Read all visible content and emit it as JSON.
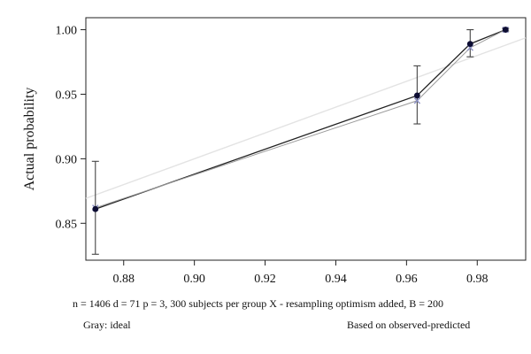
{
  "chart_data": {
    "type": "line",
    "title": "",
    "xlabel": "",
    "ylabel": "Actual probability",
    "xlim": [
      0.8693,
      0.9937
    ],
    "ylim": [
      0.8214,
      1.0093
    ],
    "x_ticks": [
      0.88,
      0.9,
      0.92,
      0.94,
      0.96,
      0.98
    ],
    "x_tick_labels": [
      "0.88",
      "0.90",
      "0.92",
      "0.94",
      "0.96",
      "0.98"
    ],
    "y_ticks": [
      0.85,
      0.9,
      0.95,
      1.0
    ],
    "y_tick_labels": [
      "0.85",
      "0.90",
      "0.95",
      "1.00"
    ],
    "grid": false,
    "series": [
      {
        "kind": "ideal",
        "color": "#e3e3e3",
        "x": [
          0.8693,
          0.9937
        ],
        "y": [
          0.8693,
          0.9937
        ]
      },
      {
        "kind": "observed",
        "color": "#222222",
        "marker": "dot",
        "x": [
          0.872,
          0.963,
          0.978,
          0.988
        ],
        "y": [
          0.861,
          0.949,
          0.989,
          1.0
        ],
        "ci_low": [
          0.826,
          0.927,
          0.979,
          0.999
        ],
        "ci_high": [
          0.898,
          0.972,
          1.0,
          1.001
        ]
      },
      {
        "kind": "bias-corrected",
        "color": "#8a8fc4",
        "marker": "x",
        "x": [
          0.872,
          0.963,
          0.978,
          0.988
        ],
        "y": [
          0.862,
          0.945,
          0.986,
          1.0
        ]
      }
    ],
    "footer": {
      "line1": "n = 1406 d = 71 p = 3, 300 subjects per group X - resampling optimism added, B = 200",
      "gray_note": "Gray: ideal",
      "based_note": "Based on observed-predicted"
    }
  }
}
